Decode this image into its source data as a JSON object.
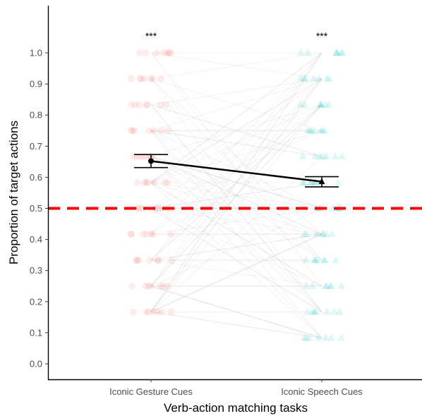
{
  "chart_data": {
    "type": "scatter",
    "title": "",
    "xlabel": "Verb-action matching tasks",
    "ylabel": "Proportion of target actions",
    "categories": [
      "Iconic Gesture Cues",
      "Iconic Speech Cues"
    ],
    "ylim": [
      -0.06,
      1.2
    ],
    "yticks": [
      0.0,
      0.1,
      0.2,
      0.3,
      0.4,
      0.5,
      0.6,
      0.7,
      0.8,
      0.9,
      1.0
    ],
    "ytick_labels": [
      "0.0",
      "0.1",
      "0.2",
      "0.3",
      "0.4",
      "0.5",
      "0.6",
      "0.7",
      "0.8",
      "0.9",
      "1.0"
    ],
    "reference_line": {
      "y": 0.5,
      "style": "dashed",
      "color": "#ff0000"
    },
    "significance_labels": [
      "***",
      "***"
    ],
    "series": [
      {
        "category": "Iconic Gesture Cues",
        "marker": "circle",
        "color": "#f8766d",
        "mean": 0.652,
        "error_low": 0.631,
        "error_high": 0.673,
        "raw_levels": [
          0.167,
          0.25,
          0.333,
          0.417,
          0.5,
          0.583,
          0.667,
          0.75,
          0.833,
          0.917,
          1.0
        ]
      },
      {
        "category": "Iconic Speech Cues",
        "marker": "triangle",
        "color": "#00bfc4",
        "mean": 0.586,
        "error_low": 0.569,
        "error_high": 0.602,
        "raw_levels": [
          0.083,
          0.167,
          0.25,
          0.333,
          0.417,
          0.5,
          0.583,
          0.667,
          0.75,
          0.833,
          0.917,
          1.0
        ]
      }
    ],
    "grid": false,
    "legend": "none"
  }
}
